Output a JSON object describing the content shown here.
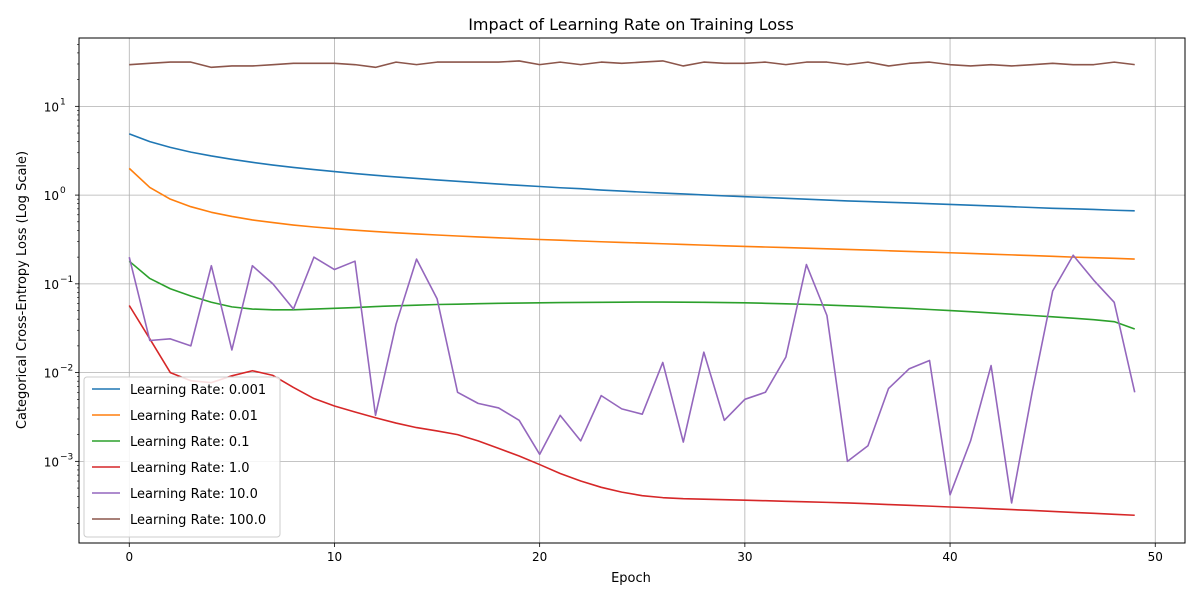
{
  "chart_data": {
    "type": "line",
    "title": "Impact of Learning Rate on Training Loss",
    "xlabel": "Epoch",
    "ylabel": "Categorical Cross-Entropy Loss (Log Scale)",
    "yscale": "log",
    "xlim": [
      -2.45,
      51.45
    ],
    "ylim_log10": [
      -3.92,
      1.77
    ],
    "xticks": [
      0,
      10,
      20,
      30,
      40,
      50
    ],
    "xtick_labels": [
      "0",
      "10",
      "20",
      "30",
      "40",
      "50"
    ],
    "yticks_exp": [
      -3,
      -2,
      -1,
      0,
      1
    ],
    "grid": true,
    "legend_position": "lower-left",
    "x": [
      0,
      1,
      2,
      3,
      4,
      5,
      6,
      7,
      8,
      9,
      10,
      11,
      12,
      13,
      14,
      15,
      16,
      17,
      18,
      19,
      20,
      21,
      22,
      23,
      24,
      25,
      26,
      27,
      28,
      29,
      30,
      31,
      32,
      33,
      34,
      35,
      36,
      37,
      38,
      39,
      40,
      41,
      42,
      43,
      44,
      45,
      46,
      47,
      48,
      49
    ],
    "series": [
      {
        "name": "Learning Rate: 0.001",
        "color": "#1f77b4",
        "values": [
          4.9,
          4.0,
          3.45,
          3.05,
          2.76,
          2.53,
          2.34,
          2.18,
          2.05,
          1.94,
          1.84,
          1.75,
          1.67,
          1.6,
          1.54,
          1.48,
          1.43,
          1.38,
          1.33,
          1.29,
          1.25,
          1.21,
          1.18,
          1.14,
          1.11,
          1.08,
          1.055,
          1.03,
          1.005,
          0.98,
          0.96,
          0.94,
          0.92,
          0.9,
          0.88,
          0.86,
          0.845,
          0.83,
          0.815,
          0.8,
          0.785,
          0.77,
          0.755,
          0.74,
          0.725,
          0.71,
          0.7,
          0.69,
          0.675,
          0.665
        ]
      },
      {
        "name": "Learning Rate: 0.01",
        "color": "#ff7f0e",
        "values": [
          2.0,
          1.22,
          0.9,
          0.74,
          0.64,
          0.575,
          0.525,
          0.49,
          0.46,
          0.437,
          0.418,
          0.402,
          0.388,
          0.376,
          0.365,
          0.355,
          0.346,
          0.338,
          0.33,
          0.323,
          0.316,
          0.31,
          0.304,
          0.298,
          0.293,
          0.288,
          0.283,
          0.278,
          0.273,
          0.268,
          0.264,
          0.26,
          0.256,
          0.252,
          0.248,
          0.244,
          0.24,
          0.236,
          0.232,
          0.228,
          0.224,
          0.22,
          0.216,
          0.212,
          0.208,
          0.204,
          0.2,
          0.197,
          0.194,
          0.19
        ]
      },
      {
        "name": "Learning Rate: 0.1",
        "color": "#2ca02c",
        "values": [
          0.18,
          0.115,
          0.088,
          0.073,
          0.062,
          0.055,
          0.052,
          0.051,
          0.051,
          0.052,
          0.053,
          0.054,
          0.0555,
          0.0565,
          0.0575,
          0.0585,
          0.059,
          0.0597,
          0.0603,
          0.0608,
          0.0612,
          0.0615,
          0.0618,
          0.062,
          0.0622,
          0.0623,
          0.0623,
          0.0622,
          0.062,
          0.0616,
          0.0611,
          0.0604,
          0.0596,
          0.0587,
          0.0577,
          0.0566,
          0.0554,
          0.0541,
          0.0528,
          0.0514,
          0.05,
          0.0485,
          0.047,
          0.0455,
          0.044,
          0.0425,
          0.041,
          0.0395,
          0.0375,
          0.031
        ]
      },
      {
        "name": "Learning Rate: 1.0",
        "color": "#d62728",
        "values": [
          0.057,
          0.024,
          0.01,
          0.0081,
          0.0077,
          0.0092,
          0.0105,
          0.0093,
          0.0068,
          0.0051,
          0.0042,
          0.0036,
          0.0031,
          0.0027,
          0.0024,
          0.0022,
          0.002,
          0.0017,
          0.0014,
          0.00115,
          0.00092,
          0.00073,
          0.0006,
          0.00051,
          0.00045,
          0.00041,
          0.00039,
          0.00038,
          0.000375,
          0.00037,
          0.000365,
          0.00036,
          0.000355,
          0.00035,
          0.000345,
          0.00034,
          0.000333,
          0.000326,
          0.00032,
          0.000313,
          0.000306,
          0.0003,
          0.000293,
          0.000286,
          0.00028,
          0.000273,
          0.000266,
          0.00026,
          0.000253,
          0.000247
        ]
      },
      {
        "name": "Learning Rate: 10.0",
        "color": "#9467bd",
        "values": [
          0.2,
          0.023,
          0.024,
          0.02,
          0.16,
          0.018,
          0.16,
          0.1,
          0.052,
          0.2,
          0.145,
          0.18,
          0.0033,
          0.035,
          0.19,
          0.068,
          0.006,
          0.0045,
          0.004,
          0.0029,
          0.0012,
          0.0033,
          0.0017,
          0.0055,
          0.0039,
          0.0034,
          0.013,
          0.00165,
          0.017,
          0.0029,
          0.005,
          0.006,
          0.015,
          0.165,
          0.044,
          0.001,
          0.0015,
          0.0066,
          0.011,
          0.0137,
          0.00042,
          0.0017,
          0.012,
          0.00034,
          0.006,
          0.083,
          0.21,
          0.11,
          0.062,
          0.006
        ]
      },
      {
        "name": "Learning Rate: 100.0",
        "color": "#8c564b",
        "values": [
          29.5,
          30.5,
          31.5,
          31.5,
          27.5,
          28.5,
          28.5,
          29.5,
          30.5,
          30.5,
          30.5,
          29.5,
          27.5,
          31.5,
          29.5,
          31.5,
          31.5,
          31.5,
          31.5,
          32.5,
          29.5,
          31.5,
          29.5,
          31.5,
          30.5,
          31.5,
          32.5,
          28.5,
          31.5,
          30.5,
          30.5,
          31.5,
          29.5,
          31.5,
          31.5,
          29.5,
          31.5,
          28.5,
          30.5,
          31.5,
          29.5,
          28.5,
          29.5,
          28.5,
          29.5,
          30.5,
          29.5,
          29.5,
          31.5,
          29.5
        ]
      }
    ]
  }
}
